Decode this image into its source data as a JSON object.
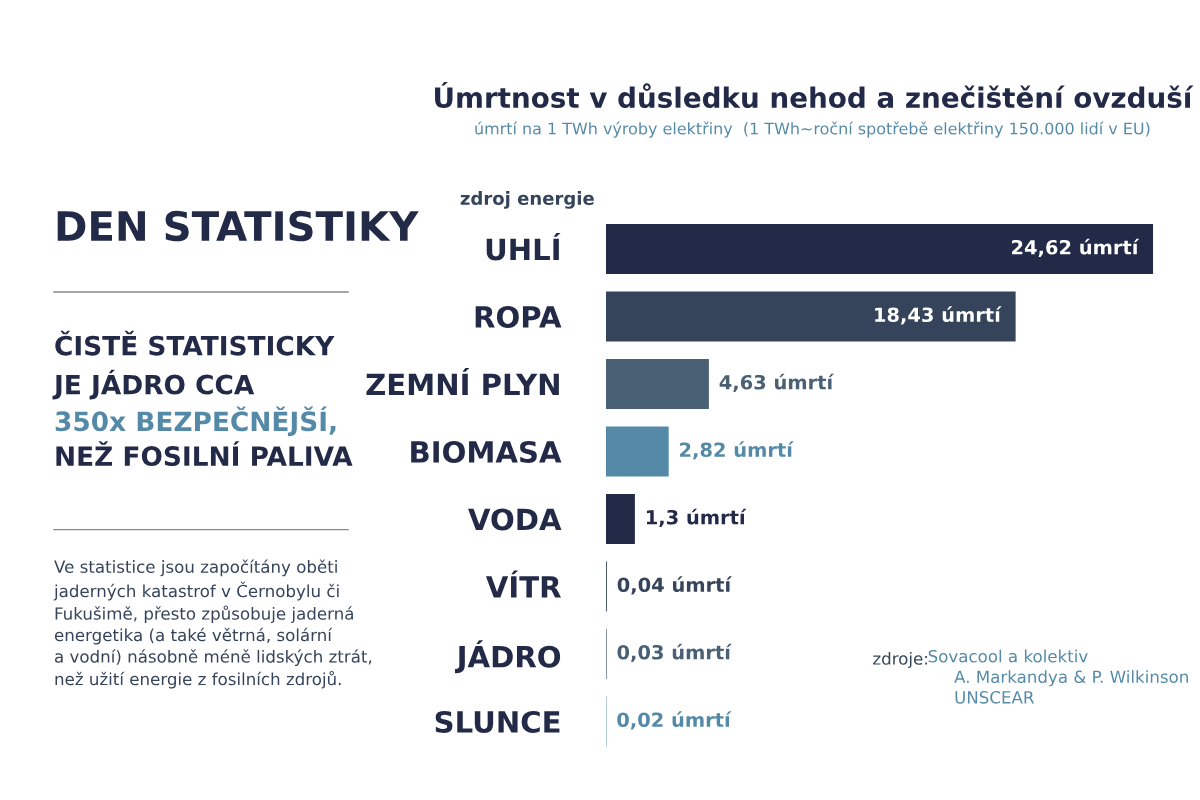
{
  "chart_data": {
    "type": "bar",
    "orientation": "horizontal",
    "title": "Úmrtnost v důsledku nehod a znečištění ovzduší",
    "subtitle": "úmrtí na 1 TWh výroby elektřiny  (1 TWh~roční spotřebě elektřiny 150.000 lidí v EU)",
    "ylabel": "zdroj energie",
    "categories": [
      "UHLÍ",
      "ROPA",
      "ZEMNÍ PLYN",
      "BIOMASA",
      "VODA",
      "VÍTR",
      "JÁDRO",
      "SLUNCE"
    ],
    "values": [
      24.62,
      18.43,
      4.63,
      2.82,
      1.3,
      0.04,
      0.03,
      0.02
    ],
    "colors": [
      "#222a48",
      "#35445a",
      "#4a6075",
      "#548aa8",
      "#222a48",
      "#35445a",
      "#4a6075",
      "#548aa8"
    ],
    "value_labels": [
      "24,62 úmrtí",
      "18,43 úmrtí",
      "4,63 úmrtí",
      "2,82 úmrtí",
      "1,3 úmrtí",
      "0,04 úmrtí",
      "0,03 úmrtí",
      "0,02 úmrtí"
    ],
    "annotations": [
      "DEN STATISTIKY",
      "ČISTĚ STATISTICKY",
      "JE JÁDRO CCA",
      "350x BEZPEČNĚJŠÍ,",
      "NEŽ FOSILNÍ PALIVA",
      "Ve statistice jsou započítány oběti\njaderných katastrof v Černobylu či\nFukušimě, přesto způsobuje jaderná\nenergetika (a také větrná, solární\na vodní) násobně méně lidských ztrát,\nnež užití energie z fosilních zdrojů.",
      "zdroje:",
      "Sovacool a kolektiv\n     A. Markandya & P. Wilkinson\n     UNSCEAR"
    ],
    "grid": false,
    "tick_labels": "y"
  }
}
